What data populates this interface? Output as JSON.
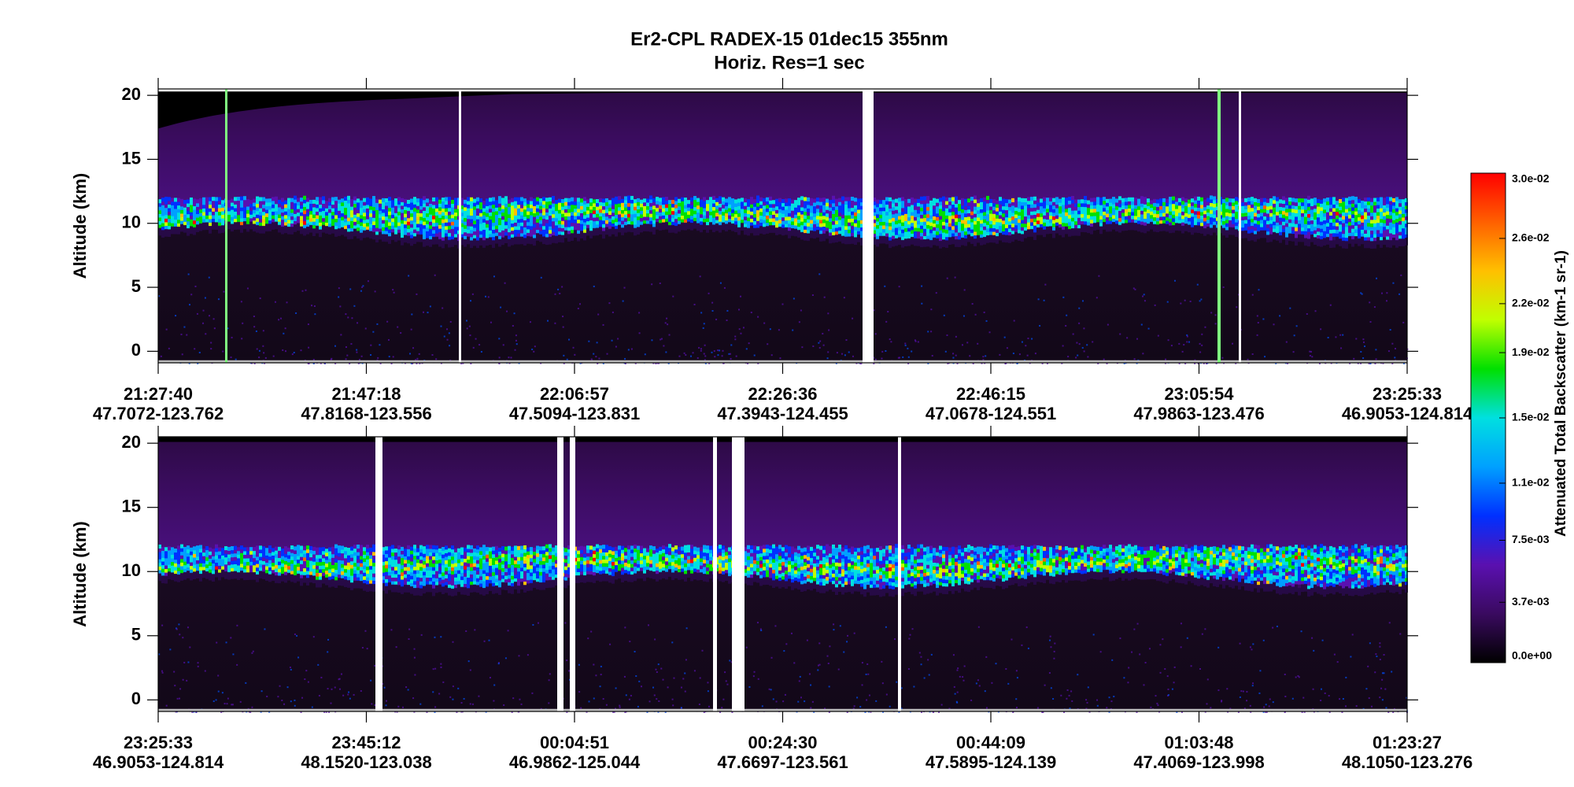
{
  "title": "Er2-CPL  RADEX-15  01dec15  355nm",
  "subtitle": "Horiz. Res=1 sec",
  "chart_data": [
    {
      "type": "heatmap",
      "ylabel": "Altitude (km)",
      "ylim": [
        -0.9,
        20.5
      ],
      "yticks": [
        0,
        5,
        10,
        15,
        20
      ],
      "x_labels": [
        "21:27:40",
        "21:47:18",
        "22:06:57",
        "22:26:36",
        "22:46:15",
        "23:05:54",
        "23:25:33"
      ],
      "x_sublabels": [
        "47.7072-123.762",
        "47.8168-123.556",
        "47.5094-123.831",
        "47.3943-124.455",
        "47.0678-124.551",
        "47.9863-123.476",
        "46.9053-124.814"
      ]
    },
    {
      "type": "heatmap",
      "ylabel": "Altitude (km)",
      "ylim": [
        -0.9,
        20.5
      ],
      "yticks": [
        0,
        5,
        10,
        15,
        20
      ],
      "x_labels": [
        "23:25:33",
        "23:45:12",
        "00:04:51",
        "00:24:30",
        "00:44:09",
        "01:03:48",
        "01:23:27"
      ],
      "x_sublabels": [
        "46.9053-124.814",
        "48.1520-123.038",
        "46.9862-125.044",
        "47.6697-123.561",
        "47.5895-124.139",
        "47.4069-123.998",
        "48.1050-123.276"
      ]
    }
  ],
  "colorbar": {
    "label": "Attenuated Total Backscatter (km-1 sr-1)",
    "lim": [
      0,
      0.03
    ],
    "colors": [
      "#000000",
      "#3a0a60",
      "#5a10b0",
      "#0030ff",
      "#00a0ff",
      "#00e0e0",
      "#00e000",
      "#c0ff00",
      "#ffc000",
      "#ff6000",
      "#ff0000"
    ],
    "ticks": [
      {
        "value": 0,
        "label": "0.0e+00"
      },
      {
        "value": 0.0037,
        "label": "3.7e-03"
      },
      {
        "value": 0.0075,
        "label": "7.5e-03"
      },
      {
        "value": 0.011,
        "label": "1.1e-02"
      },
      {
        "value": 0.015,
        "label": "1.5e-02"
      },
      {
        "value": 0.019,
        "label": "1.9e-02"
      },
      {
        "value": 0.022,
        "label": "2.2e-02"
      },
      {
        "value": 0.026,
        "label": "2.6e-02"
      },
      {
        "value": 0.03,
        "label": "3.0e-02"
      }
    ]
  }
}
